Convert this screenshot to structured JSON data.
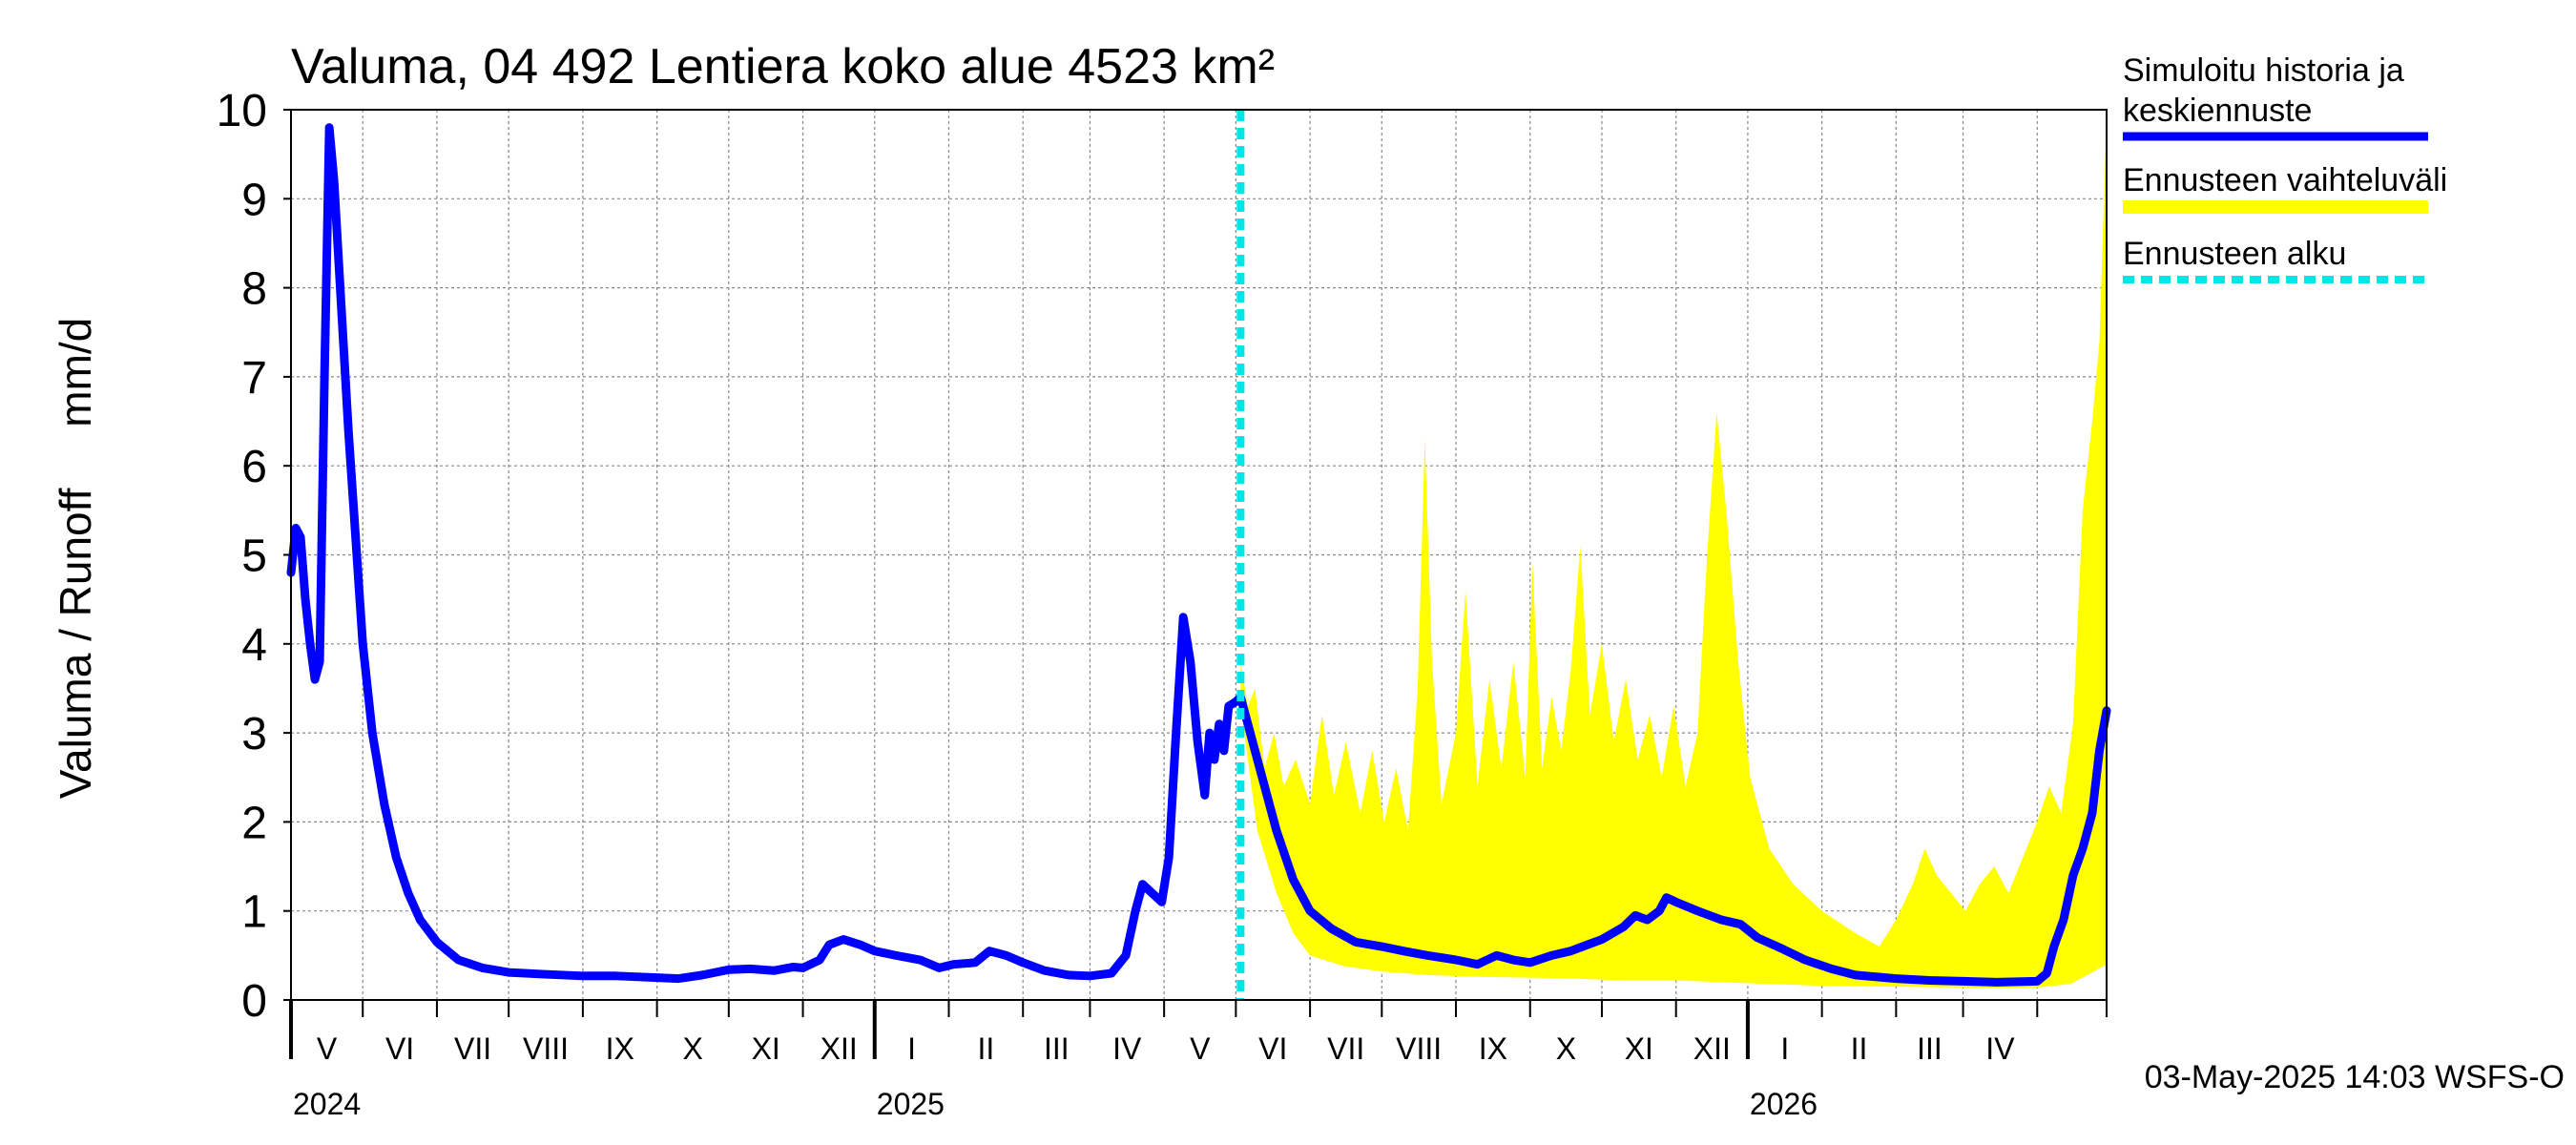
{
  "chart_data": {
    "type": "line",
    "title": "Valuma, 04 492 Lentiera koko alue 4523 km²",
    "ylabel": "Valuma / Runoff     mm/d",
    "ylim": [
      0,
      10
    ],
    "yticks": [
      "0",
      "1",
      "2",
      "3",
      "4",
      "5",
      "6",
      "7",
      "8",
      "9",
      "10"
    ],
    "xlim": [
      "2024-04-01",
      "2026-04-30"
    ],
    "month_labels": [
      {
        "label": "V",
        "start": "2024-04-01",
        "end": "2024-05-01"
      },
      {
        "label": "VI",
        "start": "2024-05-01",
        "end": "2024-06-01"
      },
      {
        "label": "VII",
        "start": "2024-06-01",
        "end": "2024-07-01"
      },
      {
        "label": "VIII",
        "start": "2024-07-01",
        "end": "2024-08-01"
      },
      {
        "label": "IX",
        "start": "2024-08-01",
        "end": "2024-09-01"
      },
      {
        "label": "X",
        "start": "2024-09-01",
        "end": "2024-10-01"
      },
      {
        "label": "XI",
        "start": "2024-10-01",
        "end": "2024-11-01"
      },
      {
        "label": "XII",
        "start": "2024-11-01",
        "end": "2024-12-01"
      },
      {
        "label": "I",
        "start": "2024-12-01",
        "end": "2025-01-01"
      },
      {
        "label": "II",
        "start": "2025-01-01",
        "end": "2025-02-01"
      },
      {
        "label": "III",
        "start": "2025-02-01",
        "end": "2025-03-01"
      },
      {
        "label": "IV",
        "start": "2025-03-01",
        "end": "2025-04-01"
      },
      {
        "label": "V",
        "start": "2025-04-01",
        "end": "2025-05-01"
      },
      {
        "label": "VI",
        "start": "2025-05-01",
        "end": "2025-06-01"
      },
      {
        "label": "VII",
        "start": "2025-06-01",
        "end": "2025-07-01"
      },
      {
        "label": "VIII",
        "start": "2025-07-01",
        "end": "2025-08-01"
      },
      {
        "label": "IX",
        "start": "2025-08-01",
        "end": "2025-09-01"
      },
      {
        "label": "X",
        "start": "2025-09-01",
        "end": "2025-10-01"
      },
      {
        "label": "XI",
        "start": "2025-10-01",
        "end": "2025-11-01"
      },
      {
        "label": "XII",
        "start": "2025-11-01",
        "end": "2025-12-01"
      },
      {
        "label": "I",
        "start": "2025-12-01",
        "end": "2026-01-01"
      },
      {
        "label": "II",
        "start": "2026-01-01",
        "end": "2026-02-01"
      },
      {
        "label": "III",
        "start": "2026-02-01",
        "end": "2026-03-01"
      },
      {
        "label": "IV",
        "start": "2026-03-01",
        "end": "2026-04-01"
      },
      {
        "label": "",
        "start": "2026-04-01",
        "end": "2026-04-30"
      }
    ],
    "year_labels": [
      {
        "label": "2024",
        "at": "2024-04-01"
      },
      {
        "label": "2025",
        "at": "2024-12-01"
      },
      {
        "label": "2026",
        "at": "2025-12-01"
      }
    ],
    "forecast_start": "2025-05-03",
    "legend": [
      {
        "label": "Simuloitu historia ja keskiennuste",
        "color": "#0000ff",
        "style": "line"
      },
      {
        "label": "Ennusteen vaihteluväli",
        "color": "#ffff00",
        "style": "band"
      },
      {
        "label": "Ennusteen alku",
        "color": "#00e5e5",
        "style": "dashed"
      }
    ],
    "legend_position": "right",
    "grid": true,
    "series": [
      {
        "name": "Simuloitu historia ja keskiennuste",
        "color": "#0000ff",
        "points": [
          [
            "2024-04-01",
            4.8
          ],
          [
            "2024-04-03",
            5.3
          ],
          [
            "2024-04-05",
            5.2
          ],
          [
            "2024-04-07",
            4.5
          ],
          [
            "2024-04-09",
            4.0
          ],
          [
            "2024-04-11",
            3.6
          ],
          [
            "2024-04-13",
            3.8
          ],
          [
            "2024-04-15",
            7.0
          ],
          [
            "2024-04-17",
            9.8
          ],
          [
            "2024-04-19",
            9.2
          ],
          [
            "2024-04-22",
            7.8
          ],
          [
            "2024-04-25",
            6.4
          ],
          [
            "2024-04-28",
            5.2
          ],
          [
            "2024-05-01",
            4.0
          ],
          [
            "2024-05-05",
            3.0
          ],
          [
            "2024-05-10",
            2.2
          ],
          [
            "2024-05-15",
            1.6
          ],
          [
            "2024-05-20",
            1.2
          ],
          [
            "2024-05-25",
            0.9
          ],
          [
            "2024-06-01",
            0.65
          ],
          [
            "2024-06-10",
            0.45
          ],
          [
            "2024-06-20",
            0.36
          ],
          [
            "2024-07-01",
            0.31
          ],
          [
            "2024-07-15",
            0.29
          ],
          [
            "2024-08-01",
            0.27
          ],
          [
            "2024-08-15",
            0.27
          ],
          [
            "2024-09-01",
            0.25
          ],
          [
            "2024-09-10",
            0.24
          ],
          [
            "2024-09-20",
            0.28
          ],
          [
            "2024-10-01",
            0.34
          ],
          [
            "2024-10-10",
            0.35
          ],
          [
            "2024-10-20",
            0.33
          ],
          [
            "2024-10-28",
            0.37
          ],
          [
            "2024-11-01",
            0.36
          ],
          [
            "2024-11-08",
            0.45
          ],
          [
            "2024-11-12",
            0.62
          ],
          [
            "2024-11-18",
            0.68
          ],
          [
            "2024-11-25",
            0.62
          ],
          [
            "2024-12-01",
            0.55
          ],
          [
            "2024-12-10",
            0.5
          ],
          [
            "2024-12-20",
            0.45
          ],
          [
            "2024-12-28",
            0.36
          ],
          [
            "2025-01-03",
            0.4
          ],
          [
            "2025-01-12",
            0.42
          ],
          [
            "2025-01-18",
            0.55
          ],
          [
            "2025-01-25",
            0.5
          ],
          [
            "2025-02-01",
            0.42
          ],
          [
            "2025-02-10",
            0.33
          ],
          [
            "2025-02-20",
            0.28
          ],
          [
            "2025-03-01",
            0.27
          ],
          [
            "2025-03-10",
            0.3
          ],
          [
            "2025-03-16",
            0.5
          ],
          [
            "2025-03-20",
            1.0
          ],
          [
            "2025-03-23",
            1.3
          ],
          [
            "2025-03-27",
            1.2
          ],
          [
            "2025-03-31",
            1.1
          ],
          [
            "2025-04-03",
            1.6
          ],
          [
            "2025-04-06",
            3.0
          ],
          [
            "2025-04-09",
            4.3
          ],
          [
            "2025-04-12",
            3.8
          ],
          [
            "2025-04-15",
            2.9
          ],
          [
            "2025-04-18",
            2.3
          ],
          [
            "2025-04-20",
            3.0
          ],
          [
            "2025-04-22",
            2.7
          ],
          [
            "2025-04-24",
            3.1
          ],
          [
            "2025-04-26",
            2.8
          ],
          [
            "2025-04-28",
            3.3
          ],
          [
            "2025-05-01",
            3.35
          ],
          [
            "2025-05-03",
            3.4
          ],
          [
            "2025-05-07",
            3.0
          ],
          [
            "2025-05-12",
            2.5
          ],
          [
            "2025-05-18",
            1.9
          ],
          [
            "2025-05-25",
            1.35
          ],
          [
            "2025-06-01",
            1.0
          ],
          [
            "2025-06-10",
            0.8
          ],
          [
            "2025-06-20",
            0.65
          ],
          [
            "2025-07-01",
            0.6
          ],
          [
            "2025-07-10",
            0.55
          ],
          [
            "2025-07-20",
            0.5
          ],
          [
            "2025-08-01",
            0.45
          ],
          [
            "2025-08-10",
            0.4
          ],
          [
            "2025-08-18",
            0.5
          ],
          [
            "2025-08-25",
            0.45
          ],
          [
            "2025-09-01",
            0.42
          ],
          [
            "2025-09-10",
            0.5
          ],
          [
            "2025-09-18",
            0.55
          ],
          [
            "2025-09-25",
            0.62
          ],
          [
            "2025-10-01",
            0.68
          ],
          [
            "2025-10-10",
            0.82
          ],
          [
            "2025-10-15",
            0.95
          ],
          [
            "2025-10-20",
            0.9
          ],
          [
            "2025-10-25",
            1.0
          ],
          [
            "2025-10-28",
            1.15
          ],
          [
            "2025-11-01",
            1.1
          ],
          [
            "2025-11-10",
            1.0
          ],
          [
            "2025-11-20",
            0.9
          ],
          [
            "2025-11-28",
            0.85
          ],
          [
            "2025-12-05",
            0.7
          ],
          [
            "2025-12-15",
            0.58
          ],
          [
            "2025-12-25",
            0.45
          ],
          [
            "2026-01-05",
            0.35
          ],
          [
            "2026-01-15",
            0.28
          ],
          [
            "2026-02-01",
            0.24
          ],
          [
            "2026-02-15",
            0.22
          ],
          [
            "2026-03-01",
            0.21
          ],
          [
            "2026-03-15",
            0.2
          ],
          [
            "2026-04-01",
            0.21
          ],
          [
            "2026-04-05",
            0.3
          ],
          [
            "2026-04-08",
            0.6
          ],
          [
            "2026-04-12",
            0.9
          ],
          [
            "2026-04-16",
            1.4
          ],
          [
            "2026-04-20",
            1.7
          ],
          [
            "2026-04-24",
            2.1
          ],
          [
            "2026-04-27",
            2.8
          ],
          [
            "2026-04-30",
            3.25
          ]
        ]
      }
    ],
    "band": {
      "name": "Ennusteen vaihteluväli",
      "color": "#ffff00",
      "upper": [
        [
          "2025-05-03",
          3.8
        ],
        [
          "2025-05-06",
          3.3
        ],
        [
          "2025-05-09",
          3.5
        ],
        [
          "2025-05-13",
          2.6
        ],
        [
          "2025-05-17",
          3.0
        ],
        [
          "2025-05-21",
          2.4
        ],
        [
          "2025-05-26",
          2.7
        ],
        [
          "2025-06-01",
          2.2
        ],
        [
          "2025-06-06",
          3.2
        ],
        [
          "2025-06-11",
          2.3
        ],
        [
          "2025-06-16",
          2.9
        ],
        [
          "2025-06-22",
          2.1
        ],
        [
          "2025-06-27",
          2.8
        ],
        [
          "2025-07-02",
          2.0
        ],
        [
          "2025-07-07",
          2.6
        ],
        [
          "2025-07-12",
          1.9
        ],
        [
          "2025-07-16",
          3.5
        ],
        [
          "2025-07-19",
          6.3
        ],
        [
          "2025-07-22",
          3.8
        ],
        [
          "2025-07-26",
          2.2
        ],
        [
          "2025-08-01",
          3.0
        ],
        [
          "2025-08-05",
          4.6
        ],
        [
          "2025-08-10",
          2.4
        ],
        [
          "2025-08-15",
          3.6
        ],
        [
          "2025-08-20",
          2.6
        ],
        [
          "2025-08-25",
          3.8
        ],
        [
          "2025-08-30",
          2.5
        ],
        [
          "2025-09-02",
          4.9
        ],
        [
          "2025-09-06",
          2.6
        ],
        [
          "2025-09-10",
          3.4
        ],
        [
          "2025-09-14",
          2.8
        ],
        [
          "2025-09-18",
          3.7
        ],
        [
          "2025-09-22",
          5.1
        ],
        [
          "2025-09-26",
          3.2
        ],
        [
          "2025-10-01",
          4.0
        ],
        [
          "2025-10-06",
          2.9
        ],
        [
          "2025-10-11",
          3.6
        ],
        [
          "2025-10-16",
          2.7
        ],
        [
          "2025-10-21",
          3.2
        ],
        [
          "2025-10-26",
          2.5
        ],
        [
          "2025-10-31",
          3.3
        ],
        [
          "2025-11-05",
          2.4
        ],
        [
          "2025-11-10",
          3.0
        ],
        [
          "2025-11-14",
          5.0
        ],
        [
          "2025-11-18",
          6.6
        ],
        [
          "2025-11-22",
          5.5
        ],
        [
          "2025-11-27",
          3.8
        ],
        [
          "2025-12-02",
          2.5
        ],
        [
          "2025-12-10",
          1.7
        ],
        [
          "2025-12-20",
          1.3
        ],
        [
          "2026-01-01",
          1.0
        ],
        [
          "2026-01-15",
          0.75
        ],
        [
          "2026-01-25",
          0.6
        ],
        [
          "2026-02-01",
          0.9
        ],
        [
          "2026-02-08",
          1.3
        ],
        [
          "2026-02-13",
          1.7
        ],
        [
          "2026-02-18",
          1.4
        ],
        [
          "2026-02-24",
          1.2
        ],
        [
          "2026-03-02",
          1.0
        ],
        [
          "2026-03-08",
          1.3
        ],
        [
          "2026-03-14",
          1.5
        ],
        [
          "2026-03-20",
          1.2
        ],
        [
          "2026-03-26",
          1.6
        ],
        [
          "2026-04-01",
          2.0
        ],
        [
          "2026-04-06",
          2.4
        ],
        [
          "2026-04-11",
          2.1
        ],
        [
          "2026-04-16",
          3.1
        ],
        [
          "2026-04-20",
          5.5
        ],
        [
          "2026-04-24",
          6.5
        ],
        [
          "2026-04-27",
          7.4
        ],
        [
          "2026-04-30",
          9.9
        ]
      ],
      "lower": [
        [
          "2025-05-03",
          3.3
        ],
        [
          "2025-05-10",
          1.9
        ],
        [
          "2025-05-18",
          1.2
        ],
        [
          "2025-05-25",
          0.75
        ],
        [
          "2025-06-01",
          0.5
        ],
        [
          "2025-06-15",
          0.38
        ],
        [
          "2025-07-01",
          0.32
        ],
        [
          "2025-07-20",
          0.28
        ],
        [
          "2025-08-10",
          0.26
        ],
        [
          "2025-09-01",
          0.25
        ],
        [
          "2025-09-20",
          0.24
        ],
        [
          "2025-10-10",
          0.22
        ],
        [
          "2025-11-01",
          0.22
        ],
        [
          "2025-11-20",
          0.2
        ],
        [
          "2025-12-10",
          0.18
        ],
        [
          "2026-01-01",
          0.16
        ],
        [
          "2026-02-01",
          0.15
        ],
        [
          "2026-03-01",
          0.14
        ],
        [
          "2026-04-01",
          0.14
        ],
        [
          "2026-04-15",
          0.18
        ],
        [
          "2026-04-30",
          0.4
        ]
      ]
    },
    "footer": "03-May-2025 14:03 WSFS-O"
  }
}
